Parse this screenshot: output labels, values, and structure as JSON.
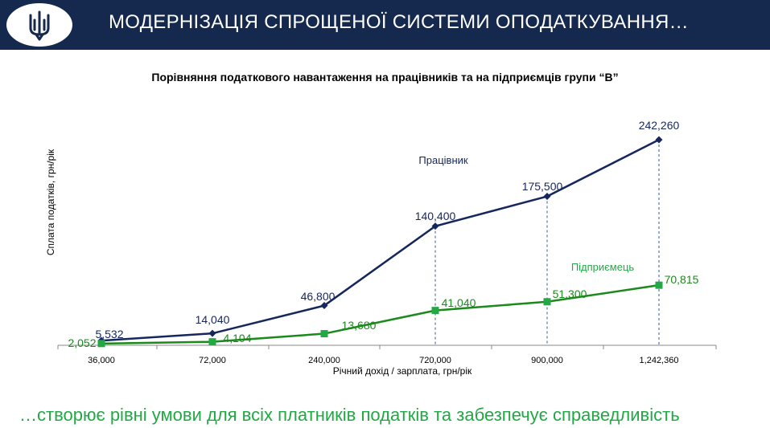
{
  "header": {
    "title": "МОДЕРНІЗАЦІЯ СПРОЩЕНОЇ СИСТЕМИ ОПОДАТКУВАННЯ…"
  },
  "logo": {
    "icon": "trident-coat-of-arms-icon"
  },
  "chart_data": {
    "type": "line",
    "title": "Порівняння податкового навантаження на працівників та на підприємців групи “В”",
    "xlabel": "Річний дохід / зарплата,  грн/рік",
    "ylabel": "Сплата податків, грн/рік",
    "categories": [
      "36,000",
      "72,000",
      "240,000",
      "720,000",
      "900,000",
      "1,242,360"
    ],
    "series": [
      {
        "name": "Працівник",
        "values": [
          5532,
          14040,
          46800,
          140400,
          175500,
          242260
        ],
        "labels": [
          "5,532",
          "14,040",
          "46,800",
          "140,400",
          "175,500",
          "242,260"
        ],
        "color": "#15275d",
        "marker": "diamond"
      },
      {
        "name": "Підприємець",
        "values": [
          2052,
          4104,
          13680,
          41040,
          51300,
          70815
        ],
        "labels": [
          "2,052",
          "4,104",
          "13,680",
          "41,040",
          "51,300",
          "70,815"
        ],
        "color": "#1a8a1a",
        "marker_color": "#22a845",
        "marker": "square"
      }
    ],
    "ylim": [
      0,
      242260
    ],
    "grid": false,
    "drop_lines": true,
    "legend": "inline"
  },
  "footer": {
    "text": "…створює рівні умови для всіх платників податків та забезпечує справедливість"
  }
}
